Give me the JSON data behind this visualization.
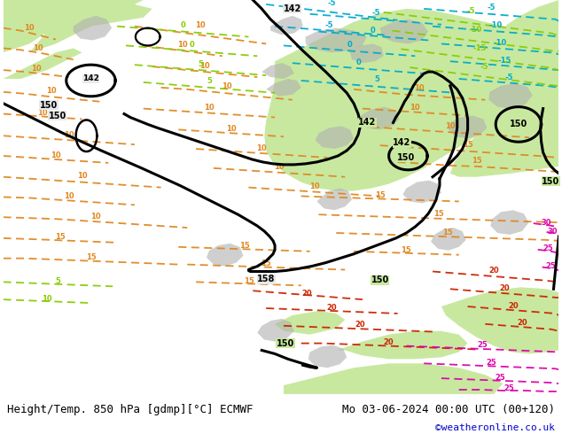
{
  "title_left": "Height/Temp. 850 hPa [gdmp][°C] ECMWF",
  "title_right": "Mo 03-06-2024 00:00 UTC (00+120)",
  "credit": "©weatheronline.co.uk",
  "bg_gray": "#e8e8e8",
  "bg_white": "#f0f0f0",
  "green_light": "#c8e8a0",
  "green_mid": "#b0dc80",
  "land_gray": "#b8b8b8",
  "orange_col": "#e08820",
  "red_col": "#cc2200",
  "pink_col": "#dd00aa",
  "cyan_col": "#00aacc",
  "ygreen_col": "#88cc00",
  "black_col": "#000000",
  "credit_color": "#0000cc"
}
